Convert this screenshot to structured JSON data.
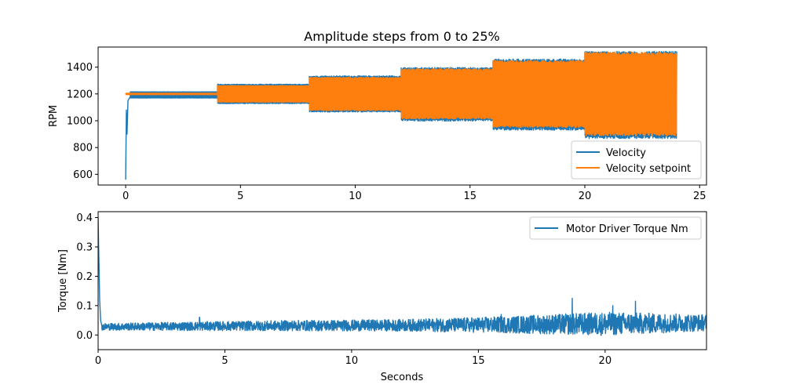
{
  "chart_data": [
    {
      "type": "line",
      "title": "Amplitude steps from 0 to 25%",
      "xlabel": "",
      "ylabel": "RPM",
      "xlim": [
        -1.2,
        25.3
      ],
      "ylim": [
        520,
        1550
      ],
      "xticks": [
        0,
        5,
        10,
        15,
        20,
        25
      ],
      "yticks": [
        600,
        800,
        1000,
        1200,
        1400
      ],
      "grid": false,
      "legend_position": "lower-right",
      "series": [
        {
          "name": "Velocity",
          "color": "#1f77b4",
          "initial_transient": [
            [
              0.0,
              560
            ],
            [
              0.03,
              1080
            ],
            [
              0.06,
              900
            ],
            [
              0.1,
              1150
            ],
            [
              0.2,
              1180
            ]
          ],
          "bands": [
            {
              "x_start": 0.2,
              "x_end": 4.0,
              "low": 1170,
              "high": 1215
            },
            {
              "x_start": 4.0,
              "x_end": 8.0,
              "low": 1130,
              "high": 1270
            },
            {
              "x_start": 8.0,
              "x_end": 12.0,
              "low": 1070,
              "high": 1330
            },
            {
              "x_start": 12.0,
              "x_end": 16.0,
              "low": 1005,
              "high": 1390
            },
            {
              "x_start": 16.0,
              "x_end": 20.0,
              "low": 940,
              "high": 1450
            },
            {
              "x_start": 20.0,
              "x_end": 24.0,
              "low": 880,
              "high": 1505
            }
          ]
        },
        {
          "name": "Velocity setpoint",
          "color": "#ff7f0e",
          "bands": [
            {
              "x_start": 0.0,
              "x_end": 4.0,
              "low": 1195,
              "high": 1205
            },
            {
              "x_start": 4.0,
              "x_end": 8.0,
              "low": 1140,
              "high": 1260
            },
            {
              "x_start": 8.0,
              "x_end": 12.0,
              "low": 1080,
              "high": 1320
            },
            {
              "x_start": 12.0,
              "x_end": 16.0,
              "low": 1020,
              "high": 1380
            },
            {
              "x_start": 16.0,
              "x_end": 20.0,
              "low": 960,
              "high": 1440
            },
            {
              "x_start": 20.0,
              "x_end": 24.0,
              "low": 900,
              "high": 1500
            }
          ]
        }
      ]
    },
    {
      "type": "line",
      "title": "",
      "xlabel": "Seconds",
      "ylabel": "Torque [Nm]",
      "xlim": [
        0,
        24
      ],
      "ylim": [
        -0.05,
        0.42
      ],
      "xticks": [
        0,
        5,
        10,
        15,
        20
      ],
      "yticks": [
        0.0,
        0.1,
        0.2,
        0.3,
        0.4
      ],
      "grid": false,
      "legend_position": "upper-right",
      "series": [
        {
          "name": "Motor Driver Torque Nm",
          "color": "#1f77b4",
          "initial_transient": [
            [
              0.0,
              0.4
            ],
            [
              0.02,
              0.3
            ],
            [
              0.04,
              0.22
            ],
            [
              0.06,
              0.12
            ],
            [
              0.1,
              0.05
            ],
            [
              0.15,
              0.03
            ]
          ],
          "baseline": [
            [
              0.15,
              0.028
            ],
            [
              4,
              0.03
            ],
            [
              8,
              0.032
            ],
            [
              12,
              0.033
            ],
            [
              16,
              0.035
            ],
            [
              20,
              0.038
            ],
            [
              24,
              0.042
            ]
          ],
          "noise_amplitude": [
            [
              0.15,
              0.012
            ],
            [
              4,
              0.015
            ],
            [
              8,
              0.018
            ],
            [
              12,
              0.02
            ],
            [
              16,
              0.028
            ],
            [
              20,
              0.04
            ],
            [
              24,
              0.028
            ]
          ],
          "spikes": [
            [
              18.7,
              0.125
            ],
            [
              20.3,
              0.1
            ],
            [
              21.2,
              0.115
            ],
            [
              4.0,
              0.06
            ],
            [
              15.9,
              0.07
            ]
          ]
        }
      ]
    }
  ]
}
